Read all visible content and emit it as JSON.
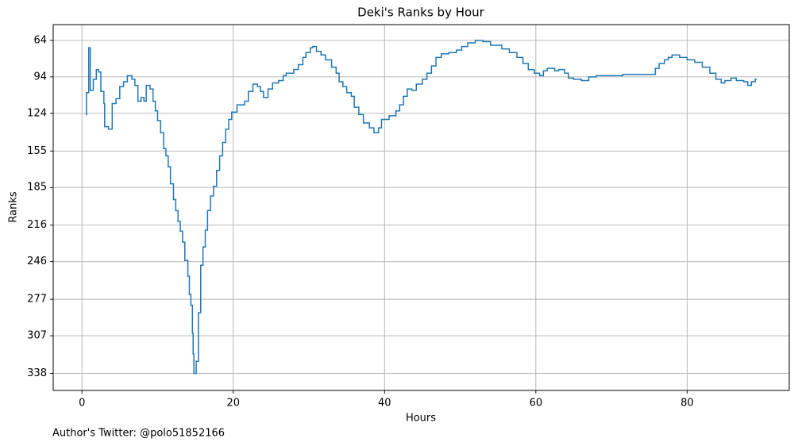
{
  "chart_data": {
    "type": "step",
    "title": "Deki's Ranks by Hour",
    "x_label": "Hours",
    "y_label": "Ranks",
    "footnote": "Author's Twitter: @polo51852166",
    "grid": true,
    "xlim": [
      -3.8,
      93.5
    ],
    "xticks": [
      0,
      20,
      40,
      60,
      80
    ],
    "ylim": [
      352,
      51
    ],
    "yticks": [
      64,
      94,
      124,
      155,
      185,
      216,
      246,
      277,
      307,
      338
    ],
    "series": [
      {
        "color": "#1f77b4",
        "x": [
          0.5,
          0.6,
          0.9,
          1.1,
          1.5,
          1.9,
          2.2,
          2.5,
          2.9,
          3.0,
          3.5,
          4.0,
          4.5,
          5.0,
          5.5,
          6.0,
          6.6,
          7.0,
          7.4,
          7.8,
          8.2,
          8.5,
          9.0,
          9.4,
          9.7,
          10.0,
          10.4,
          10.8,
          11.1,
          11.4,
          11.7,
          12.1,
          12.4,
          12.7,
          13.0,
          13.3,
          13.6,
          14.0,
          14.2,
          14.4,
          14.6,
          14.7,
          14.8,
          15.1,
          15.4,
          15.7,
          16.0,
          16.3,
          16.6,
          17.0,
          17.4,
          17.8,
          18.2,
          18.6,
          19.0,
          19.4,
          19.8,
          20.5,
          21.5,
          22.0,
          22.6,
          23.2,
          23.6,
          24.0,
          24.6,
          25.2,
          26.0,
          26.6,
          27.0,
          28.0,
          28.6,
          29.2,
          29.6,
          30.2,
          30.5,
          31.0,
          31.6,
          32.2,
          33.0,
          33.6,
          34.0,
          34.5,
          35.0,
          35.6,
          36.0,
          36.6,
          37.2,
          38.0,
          38.6,
          39.2,
          39.6,
          40.6,
          41.5,
          42.0,
          42.5,
          43.0,
          43.6,
          44.2,
          45.0,
          45.6,
          46.2,
          46.8,
          47.5,
          48.5,
          49.5,
          50.2,
          51.0,
          52.0,
          53.0,
          54.0,
          55.5,
          56.5,
          57.5,
          58.3,
          59.0,
          59.8,
          60.5,
          61.0,
          61.5,
          62.5,
          63.0,
          63.8,
          64.3,
          65.0,
          66.0,
          67.0,
          68.0,
          71.5,
          75.5,
          75.8,
          76.3,
          77.0,
          77.5,
          78.0,
          79.0,
          80.0,
          81.0,
          82.0,
          83.0,
          83.8,
          84.5,
          85.0,
          85.8,
          86.5,
          87.5,
          88.0,
          88.5,
          89.0,
          89.2
        ],
        "values": [
          125,
          107,
          70,
          105,
          96,
          88,
          90,
          106,
          116,
          135,
          137,
          116,
          112,
          102,
          98,
          93,
          96,
          101,
          114,
          111,
          114,
          101,
          104,
          114,
          122,
          130,
          140,
          153,
          159,
          168,
          182,
          195,
          204,
          213,
          221,
          230,
          245,
          258,
          273,
          282,
          305,
          322,
          338,
          328,
          288,
          249,
          234,
          220,
          204,
          192,
          184,
          171,
          159,
          148,
          137,
          129,
          123,
          117,
          114,
          106,
          100,
          102,
          106,
          111,
          104,
          99,
          97,
          93,
          91,
          88,
          84,
          78,
          74,
          70,
          69,
          73,
          76,
          80,
          86,
          91,
          98,
          102,
          107,
          110,
          119,
          125,
          132,
          136,
          140,
          136,
          129,
          126,
          122,
          117,
          110,
          104,
          105,
          100,
          96,
          91,
          85,
          78,
          75,
          74,
          72,
          69,
          66,
          64,
          65,
          68,
          71,
          74,
          78,
          83,
          88,
          91,
          93,
          89,
          87,
          89,
          88,
          91,
          95,
          96,
          97,
          94,
          93,
          92,
          92,
          87,
          83,
          80,
          78,
          76,
          78,
          80,
          82,
          86,
          91,
          96,
          99,
          97,
          95,
          97,
          98,
          101,
          98,
          96,
          96
        ]
      }
    ]
  }
}
